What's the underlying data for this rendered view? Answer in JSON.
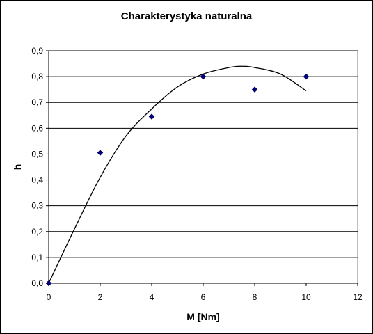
{
  "chart_data": {
    "type": "scatter",
    "title": "Charakterystyka naturalna",
    "xlabel": "M [Nm]",
    "ylabel": "h",
    "xlim": [
      0,
      12
    ],
    "ylim": [
      0,
      0.9
    ],
    "x_ticks": [
      "0",
      "2",
      "4",
      "6",
      "8",
      "10",
      "12"
    ],
    "y_ticks": [
      "0,0",
      "0,1",
      "0,2",
      "0,3",
      "0,4",
      "0,5",
      "0,6",
      "0,7",
      "0,8",
      "0,9"
    ],
    "grid": "horizontal",
    "legend": "none",
    "series": [
      {
        "points": [
          {
            "x": 0,
            "y": 0.0
          },
          {
            "x": 2,
            "y": 0.505
          },
          {
            "x": 4,
            "y": 0.645
          },
          {
            "x": 6,
            "y": 0.8
          },
          {
            "x": 8,
            "y": 0.75
          },
          {
            "x": 10,
            "y": 0.8
          }
        ],
        "marker": "diamond",
        "color": "#000080"
      }
    ],
    "trendline": {
      "type": "polynomial",
      "x_range": [
        0,
        10
      ],
      "curve": [
        {
          "x": 0,
          "y": 0.0
        },
        {
          "x": 1,
          "y": 0.21
        },
        {
          "x": 2,
          "y": 0.41
        },
        {
          "x": 3,
          "y": 0.57
        },
        {
          "x": 4,
          "y": 0.675
        },
        {
          "x": 5,
          "y": 0.76
        },
        {
          "x": 6,
          "y": 0.81
        },
        {
          "x": 7,
          "y": 0.835
        },
        {
          "x": 7.5,
          "y": 0.84
        },
        {
          "x": 8,
          "y": 0.835
        },
        {
          "x": 9,
          "y": 0.81
        },
        {
          "x": 10,
          "y": 0.745
        }
      ],
      "color": "#000000"
    }
  }
}
